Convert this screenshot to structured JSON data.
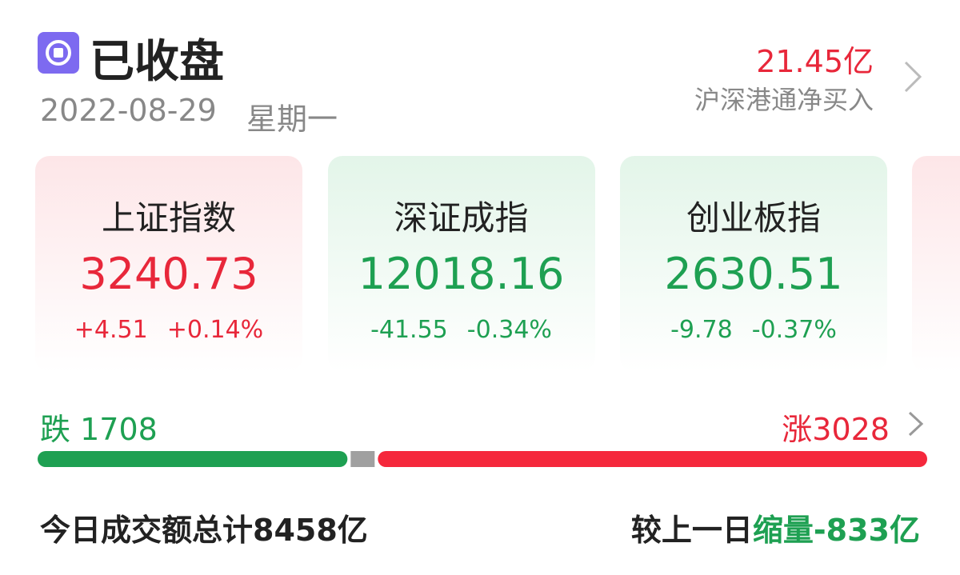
{
  "header": {
    "status": "已收盘",
    "date": "2022-08-29",
    "weekday": "星期一"
  },
  "flow": {
    "amount": "21.45亿",
    "label": "沪深港通净买入"
  },
  "cards": [
    {
      "name": "上证指数",
      "value": "3240.73",
      "change": "+4.51",
      "pct": "+0.14%",
      "trend": "up"
    },
    {
      "name": "深证成指",
      "value": "12018.16",
      "change": "-41.55",
      "pct": "-0.34%",
      "trend": "down"
    },
    {
      "name": "创业板指",
      "value": "2630.51",
      "change": "-9.78",
      "pct": "-0.37%",
      "trend": "down"
    }
  ],
  "breadth": {
    "fall_label": "跌",
    "fall": 1708,
    "rise_label": "涨",
    "rise": 3028
  },
  "turnover": {
    "label": "今日成交额总计",
    "value": "8458亿",
    "compare_label": "较上一日",
    "compare_value": "缩量-833亿"
  }
}
